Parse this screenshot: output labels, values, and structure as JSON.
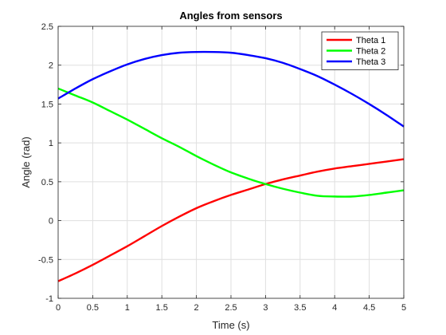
{
  "chart_data": {
    "type": "line",
    "title": "Angles from sensors",
    "xlabel": "Time (s)",
    "ylabel": "Angle (rad)",
    "xlim": [
      0,
      5
    ],
    "ylim": [
      -1,
      2.5
    ],
    "xticks": [
      0,
      0.5,
      1,
      1.5,
      2,
      2.5,
      3,
      3.5,
      4,
      4.5,
      5
    ],
    "xtick_labels": [
      "0",
      "0.5",
      "1",
      "1.5",
      "2",
      "2.5",
      "3",
      "3.5",
      "4",
      "4.5",
      "5"
    ],
    "yticks": [
      -1,
      -0.5,
      0,
      0.5,
      1,
      1.5,
      2,
      2.5
    ],
    "ytick_labels": [
      "-1",
      "-0.5",
      "0",
      "0.5",
      "1",
      "1.5",
      "2",
      "2.5"
    ],
    "grid": true,
    "legend_position": "top-right",
    "x": [
      0,
      0.25,
      0.5,
      0.75,
      1,
      1.25,
      1.5,
      1.75,
      2,
      2.25,
      2.5,
      2.75,
      3,
      3.25,
      3.5,
      3.75,
      4,
      4.25,
      4.5,
      4.75,
      5
    ],
    "series": [
      {
        "name": "Theta 1",
        "color": "#ff0000",
        "values": [
          -0.78,
          -0.68,
          -0.57,
          -0.45,
          -0.33,
          -0.2,
          -0.07,
          0.05,
          0.16,
          0.25,
          0.33,
          0.4,
          0.47,
          0.53,
          0.58,
          0.63,
          0.67,
          0.7,
          0.73,
          0.76,
          0.79
        ]
      },
      {
        "name": "Theta 2",
        "color": "#00ff00",
        "values": [
          1.7,
          1.61,
          1.52,
          1.41,
          1.3,
          1.18,
          1.06,
          0.95,
          0.83,
          0.72,
          0.62,
          0.54,
          0.47,
          0.41,
          0.36,
          0.32,
          0.31,
          0.31,
          0.33,
          0.36,
          0.39
        ]
      },
      {
        "name": "Theta 3",
        "color": "#0000ff",
        "values": [
          1.57,
          1.7,
          1.82,
          1.92,
          2.01,
          2.08,
          2.13,
          2.16,
          2.17,
          2.17,
          2.16,
          2.13,
          2.09,
          2.03,
          1.95,
          1.86,
          1.75,
          1.63,
          1.5,
          1.36,
          1.21
        ]
      }
    ]
  }
}
